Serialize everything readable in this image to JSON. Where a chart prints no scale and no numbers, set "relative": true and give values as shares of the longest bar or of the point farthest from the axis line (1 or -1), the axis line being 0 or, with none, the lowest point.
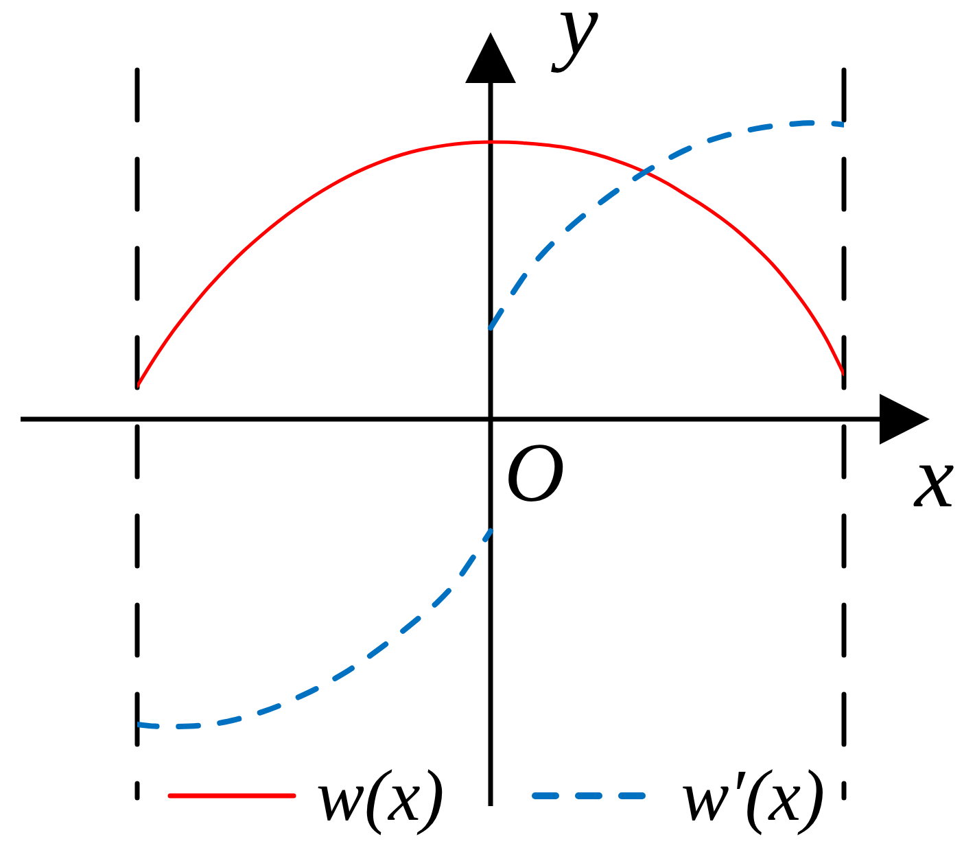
{
  "chart_data": {
    "type": "line",
    "relative": true,
    "xlabel": "x",
    "ylabel": "y",
    "annotations": [
      "O"
    ],
    "legend": "bottom",
    "categories": [
      null,
      null,
      null,
      null,
      null,
      null,
      null,
      null,
      null,
      null,
      null,
      null,
      null,
      null,
      null,
      null,
      null,
      null,
      null,
      null,
      null,
      null,
      null,
      null,
      null,
      null,
      null,
      null,
      null,
      null,
      null,
      null,
      null,
      null,
      null,
      null,
      null,
      null,
      null,
      null,
      null
    ],
    "series": [
      {
        "name": "w(x)",
        "color": "#ff0000",
        "line_style": "solid",
        "values": [
          0.107,
          0.2,
          0.284,
          0.358,
          0.427,
          0.489,
          0.546,
          0.597,
          0.644,
          0.687,
          0.726,
          0.761,
          0.792,
          0.819,
          0.842,
          0.861,
          0.876,
          0.887,
          0.895,
          0.9,
          0.902,
          0.901,
          0.898,
          0.893,
          0.886,
          0.875,
          0.861,
          0.843,
          0.822,
          0.797,
          0.767,
          0.732,
          0.696,
          0.656,
          0.611,
          0.559,
          0.501,
          0.432,
          0.354,
          0.261,
          0.146
        ]
      },
      {
        "name": "w′(x)",
        "color": "#0070c0",
        "line_style": "dashed",
        "values": [
          -0.993,
          -0.999,
          -1.0,
          -0.999,
          -0.994,
          -0.985,
          -0.971,
          -0.954,
          -0.933,
          -0.908,
          -0.881,
          -0.85,
          -0.816,
          -0.777,
          -0.735,
          -0.691,
          -0.644,
          -0.595,
          -0.533,
          -0.451,
          -0.364,
          null,
          null,
          null,
          null,
          null,
          null,
          null,
          null,
          null,
          null,
          null,
          null,
          null,
          null,
          null,
          null,
          null,
          null,
          null,
          null
        ]
      },
      {
        "color": "#0070c0",
        "line_style": "dashed",
        "values": [
          null,
          null,
          null,
          null,
          null,
          null,
          null,
          null,
          null,
          null,
          null,
          null,
          null,
          null,
          null,
          null,
          null,
          null,
          null,
          null,
          0.297,
          0.388,
          0.473,
          0.542,
          0.599,
          0.65,
          0.695,
          0.738,
          0.777,
          0.813,
          0.846,
          0.875,
          0.899,
          0.918,
          0.933,
          0.945,
          0.954,
          0.96,
          0.964,
          0.963,
          0.958
        ]
      }
    ]
  }
}
